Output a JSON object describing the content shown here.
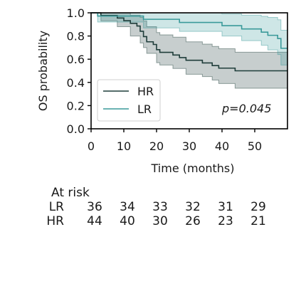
{
  "chart_data": {
    "type": "line",
    "chart_kind": "kaplan-meier",
    "ylabel": "OS probability",
    "xlabel": "Time (months)",
    "xlim": [
      0,
      60
    ],
    "ylim": [
      0,
      1.0
    ],
    "xticks": [
      0,
      10,
      20,
      30,
      40,
      50
    ],
    "yticks": [
      0.0,
      0.2,
      0.4,
      0.6,
      0.8,
      1.0
    ],
    "annotation": "p=0.045",
    "legend_position": "bottom-left",
    "grid": false,
    "series": [
      {
        "name": "HR",
        "color": "#1f3d3a",
        "steps": [
          [
            0,
            1.0
          ],
          [
            3,
            1.0
          ],
          [
            3,
            0.977
          ],
          [
            8,
            0.977
          ],
          [
            8,
            0.955
          ],
          [
            10,
            0.955
          ],
          [
            10,
            0.932
          ],
          [
            12,
            0.932
          ],
          [
            12,
            0.909
          ],
          [
            14,
            0.909
          ],
          [
            14,
            0.886
          ],
          [
            15,
            0.886
          ],
          [
            15,
            0.841
          ],
          [
            16,
            0.841
          ],
          [
            16,
            0.795
          ],
          [
            17,
            0.795
          ],
          [
            17,
            0.75
          ],
          [
            19,
            0.75
          ],
          [
            19,
            0.727
          ],
          [
            20,
            0.727
          ],
          [
            20,
            0.682
          ],
          [
            21,
            0.682
          ],
          [
            21,
            0.659
          ],
          [
            25,
            0.659
          ],
          [
            25,
            0.636
          ],
          [
            27,
            0.636
          ],
          [
            27,
            0.614
          ],
          [
            29,
            0.614
          ],
          [
            29,
            0.591
          ],
          [
            34,
            0.591
          ],
          [
            34,
            0.568
          ],
          [
            37,
            0.568
          ],
          [
            37,
            0.545
          ],
          [
            39,
            0.545
          ],
          [
            39,
            0.523
          ],
          [
            44,
            0.523
          ],
          [
            44,
            0.5
          ],
          [
            60,
            0.5
          ]
        ],
        "ci": [
          [
            0,
            1.0,
            1.0
          ],
          [
            3,
            0.93,
            1.0
          ],
          [
            8,
            0.88,
            1.0
          ],
          [
            12,
            0.8,
            0.98
          ],
          [
            15,
            0.74,
            0.96
          ],
          [
            16,
            0.7,
            0.93
          ],
          [
            17,
            0.65,
            0.88
          ],
          [
            20,
            0.57,
            0.83
          ],
          [
            21,
            0.55,
            0.81
          ],
          [
            25,
            0.52,
            0.79
          ],
          [
            29,
            0.47,
            0.75
          ],
          [
            34,
            0.45,
            0.73
          ],
          [
            37,
            0.42,
            0.71
          ],
          [
            39,
            0.39,
            0.69
          ],
          [
            44,
            0.35,
            0.66
          ],
          [
            60,
            0.35,
            0.66
          ]
        ]
      },
      {
        "name": "LR",
        "color": "#3a9a9a",
        "steps": [
          [
            0,
            1.0
          ],
          [
            2,
            1.0
          ],
          [
            2,
            0.972
          ],
          [
            16,
            0.972
          ],
          [
            16,
            0.944
          ],
          [
            27,
            0.944
          ],
          [
            27,
            0.917
          ],
          [
            40,
            0.917
          ],
          [
            40,
            0.889
          ],
          [
            46,
            0.889
          ],
          [
            46,
            0.861
          ],
          [
            52,
            0.861
          ],
          [
            52,
            0.833
          ],
          [
            54,
            0.833
          ],
          [
            54,
            0.806
          ],
          [
            57,
            0.806
          ],
          [
            57,
            0.778
          ],
          [
            58,
            0.778
          ],
          [
            58,
            0.694
          ],
          [
            60,
            0.694
          ]
        ],
        "ci": [
          [
            0,
            1.0,
            1.0
          ],
          [
            2,
            0.92,
            1.0
          ],
          [
            16,
            0.87,
            1.0
          ],
          [
            27,
            0.84,
            1.0
          ],
          [
            40,
            0.8,
            0.99
          ],
          [
            46,
            0.76,
            0.98
          ],
          [
            52,
            0.72,
            0.97
          ],
          [
            54,
            0.68,
            0.96
          ],
          [
            57,
            0.64,
            0.94
          ],
          [
            58,
            0.55,
            0.85
          ],
          [
            60,
            0.55,
            0.85
          ]
        ]
      }
    ]
  },
  "risk_table": {
    "title": "At risk",
    "times": [
      0,
      10,
      20,
      30,
      40,
      50
    ],
    "rows": [
      {
        "label": "LR",
        "values": [
          "36",
          "34",
          "33",
          "32",
          "31",
          "29"
        ]
      },
      {
        "label": "HR",
        "values": [
          "44",
          "40",
          "30",
          "26",
          "23",
          "21"
        ]
      }
    ]
  }
}
